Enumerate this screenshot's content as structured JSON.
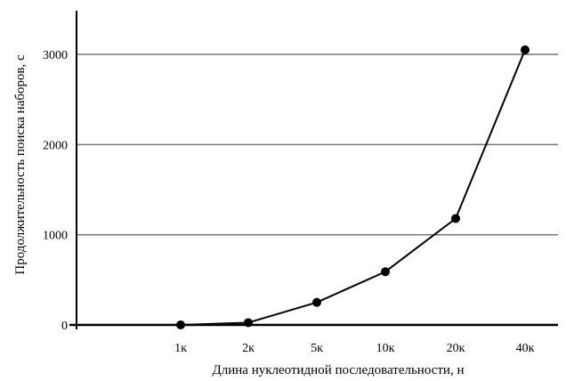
{
  "chart_data": {
    "type": "line",
    "title": "",
    "xlabel": "Длина нуклеотидной последовательности, н",
    "ylabel": "Продолжительность поиска наборов, с",
    "categories": [
      "1к",
      "2к",
      "5к",
      "10к",
      "20к",
      "40к"
    ],
    "series": [
      {
        "values": [
          0,
          25,
          250,
          590,
          1180,
          3050
        ]
      }
    ],
    "yticks": [
      0,
      1000,
      2000,
      3000
    ],
    "ylim": [
      0,
      3500
    ],
    "grid": true,
    "legend": "none",
    "colors": {
      "line": "#000000",
      "grid": "#777777",
      "axis": "#000000"
    }
  }
}
